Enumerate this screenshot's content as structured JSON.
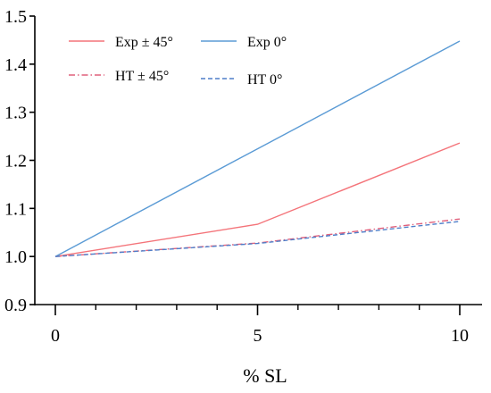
{
  "chart_data": {
    "type": "line",
    "title": "",
    "xlabel": "% SL",
    "ylabel": "",
    "xlim": [
      0,
      10
    ],
    "ylim": [
      0.9,
      1.5
    ],
    "x_ticks": [
      0,
      5,
      10
    ],
    "x_tick_labels": [
      "0",
      "5",
      "10"
    ],
    "x_minor_ticks": [
      1,
      2,
      3,
      4,
      6,
      7,
      8,
      9
    ],
    "y_ticks": [
      0.9,
      1.0,
      1.1,
      1.2,
      1.3,
      1.4,
      1.5
    ],
    "y_tick_labels": [
      "0.9",
      "1.0",
      "1.1",
      "1.2",
      "1.3",
      "1.4",
      "1.5"
    ],
    "grid": false,
    "legend_position": "top",
    "series": [
      {
        "name": "Exp ± 45°",
        "x": [
          0,
          5,
          10
        ],
        "y": [
          1.0,
          1.067,
          1.236
        ],
        "color": "#f4747a",
        "dash": "solid"
      },
      {
        "name": "Exp 0°",
        "x": [
          0,
          5,
          10
        ],
        "y": [
          1.0,
          1.224,
          1.448
        ],
        "color": "#5b9bd5",
        "dash": "solid"
      },
      {
        "name": "HT ± 45°",
        "x": [
          0,
          5,
          10
        ],
        "y": [
          1.0,
          1.028,
          1.078
        ],
        "color": "#e0607c",
        "dash": "dashdot"
      },
      {
        "name": "HT 0°",
        "x": [
          0,
          5,
          10
        ],
        "y": [
          1.0,
          1.027,
          1.073
        ],
        "color": "#4f7fc9",
        "dash": "dash"
      }
    ]
  }
}
